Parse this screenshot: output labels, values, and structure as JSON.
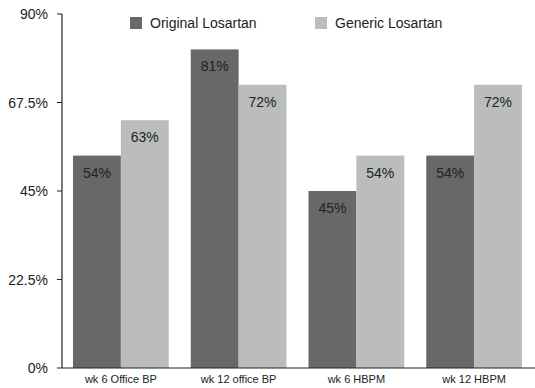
{
  "chart_data": {
    "type": "bar",
    "categories": [
      "wk 6 Office BP",
      "wk 12 office BP",
      "wk 6 HBPM",
      "wk 12 HBPM"
    ],
    "series": [
      {
        "name": "Original Losartan",
        "color": "#686868",
        "values": [
          54,
          81,
          45,
          54
        ],
        "value_labels": [
          "54%",
          "81%",
          "45%",
          "54%"
        ]
      },
      {
        "name": "Generic Losartan",
        "color": "#babdbc",
        "values": [
          63,
          72,
          54,
          72
        ],
        "value_labels": [
          "63%",
          "72%",
          "54%",
          "72%"
        ]
      }
    ],
    "ylim": [
      0,
      90
    ],
    "yticks": [
      {
        "value": 0,
        "label": "0%"
      },
      {
        "value": 22.5,
        "label": "22.5%"
      },
      {
        "value": 45,
        "label": "45%"
      },
      {
        "value": 67.5,
        "label": "67.5%"
      },
      {
        "value": 90,
        "label": "90%"
      }
    ],
    "grid": false,
    "legend": "top",
    "data_labels": true
  }
}
